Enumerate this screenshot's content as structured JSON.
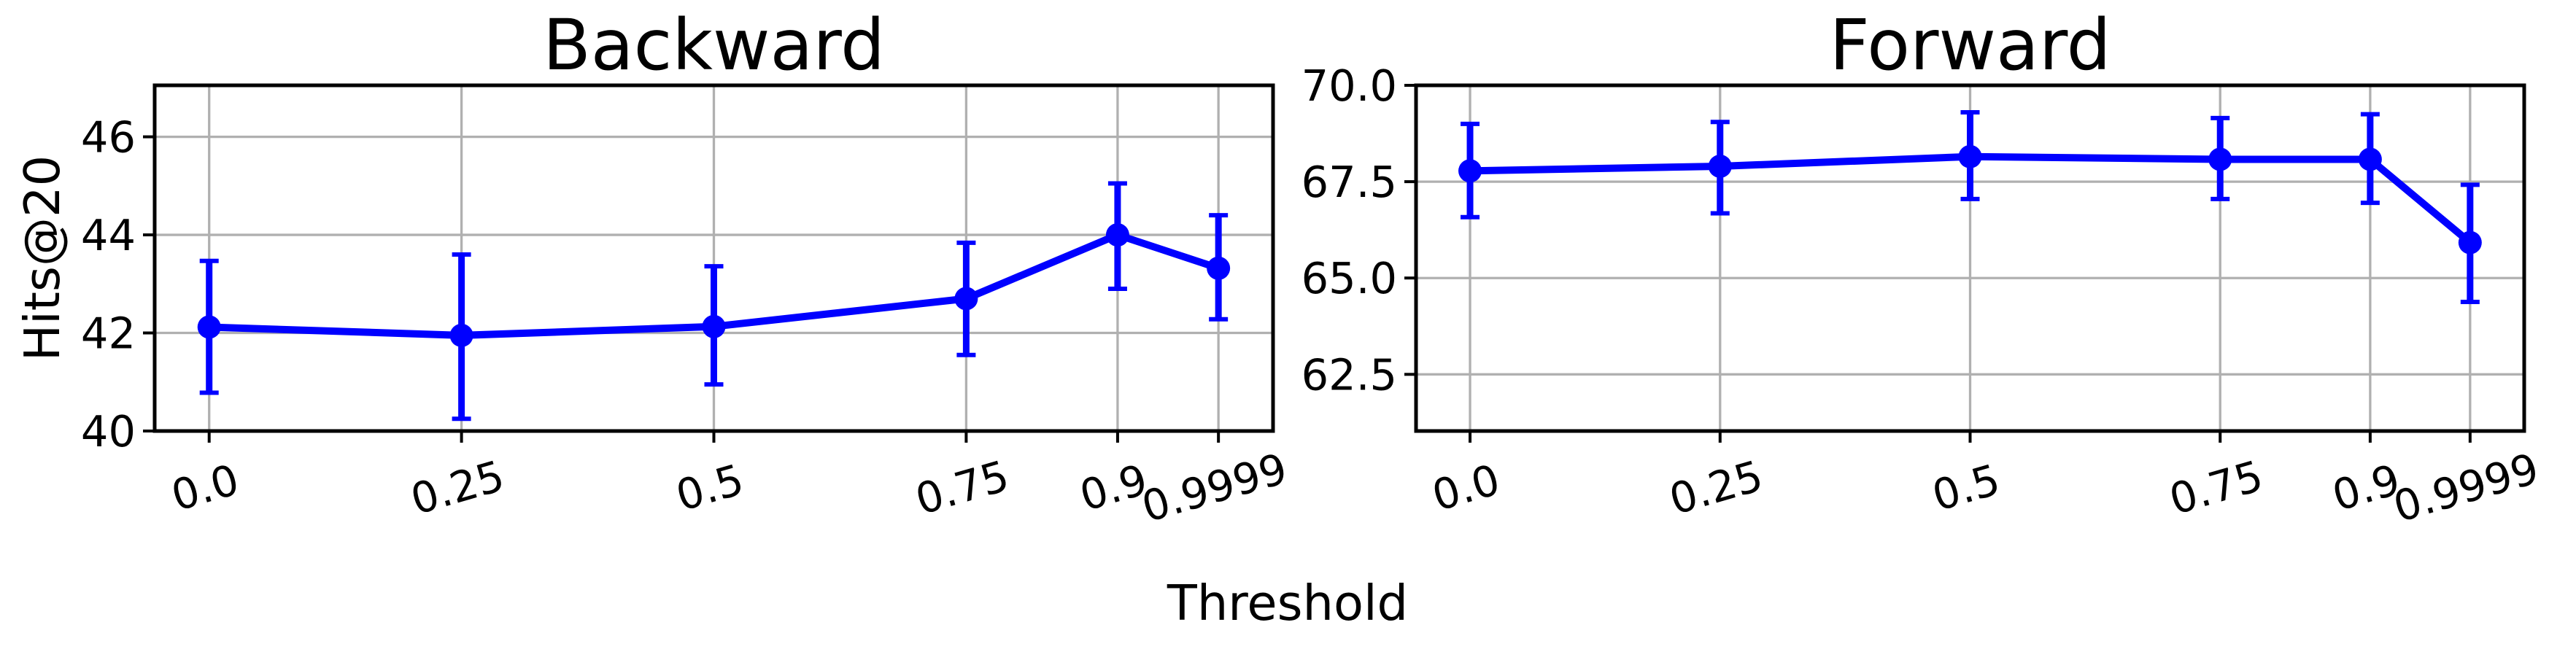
{
  "style": {
    "line_color": "#0000ff",
    "grid_color": "#b0b0b0",
    "axis_color": "#000000",
    "background": "#ffffff"
  },
  "xlabel_shared": "Threshold",
  "chart_data": [
    {
      "type": "line",
      "title": "Backward",
      "xlabel": "Threshold",
      "ylabel": "Hits@20",
      "x": [
        0.0,
        0.25,
        0.5,
        0.75,
        0.9,
        0.9999
      ],
      "xtick_labels": [
        "0.0",
        "0.25",
        "0.5",
        "0.75",
        "0.9",
        "0.9999"
      ],
      "series": [
        {
          "name": "Hits@20",
          "values": [
            42.12,
            41.95,
            42.13,
            42.7,
            44.0,
            43.32
          ],
          "err_lower": [
            40.78,
            40.25,
            40.95,
            41.55,
            42.9,
            42.28
          ],
          "err_upper": [
            43.47,
            43.6,
            43.36,
            43.84,
            45.05,
            44.4
          ]
        }
      ],
      "xlim": [
        -0.054,
        1.054
      ],
      "ylim": [
        40.0,
        47.05
      ],
      "yticks": [
        40,
        42,
        44,
        46
      ],
      "ytick_labels": [
        "40",
        "42",
        "44",
        "46"
      ],
      "grid": true,
      "legend": false
    },
    {
      "type": "line",
      "title": "Forward",
      "xlabel": "Threshold",
      "ylabel": "",
      "x": [
        0.0,
        0.25,
        0.5,
        0.75,
        0.9,
        0.9999
      ],
      "xtick_labels": [
        "0.0",
        "0.25",
        "0.5",
        "0.75",
        "0.9",
        "0.9999"
      ],
      "series": [
        {
          "name": "Hits@20",
          "values": [
            67.78,
            67.9,
            68.15,
            68.08,
            68.08,
            65.92
          ],
          "err_lower": [
            66.58,
            66.68,
            67.05,
            67.05,
            66.95,
            64.38
          ],
          "err_upper": [
            69.0,
            69.05,
            69.3,
            69.15,
            69.25,
            67.42
          ]
        }
      ],
      "xlim": [
        -0.054,
        1.054
      ],
      "ylim": [
        61.03,
        70.0
      ],
      "yticks": [
        62.5,
        65.0,
        67.5,
        70.0
      ],
      "ytick_labels": [
        "62.5",
        "65.0",
        "67.5",
        "70.0"
      ],
      "grid": true,
      "legend": false
    }
  ]
}
